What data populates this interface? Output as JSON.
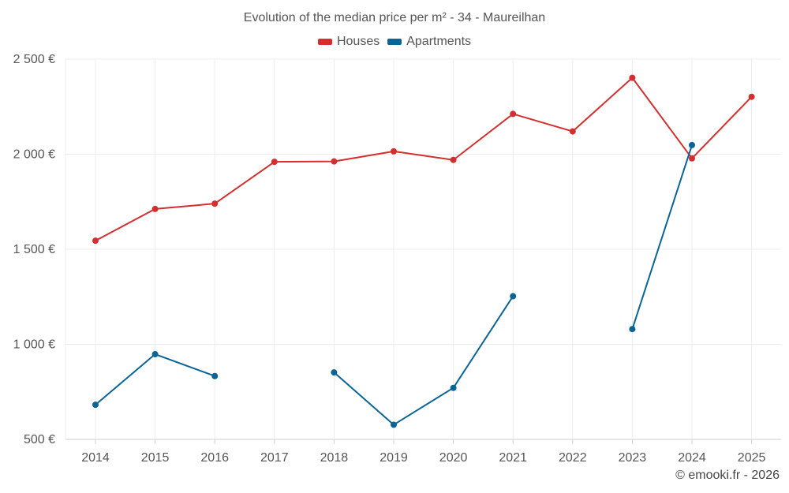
{
  "chart_data": {
    "type": "line",
    "title": "Evolution of the median price per m² - 34 - Maureilhan",
    "x": [
      "2014",
      "2015",
      "2016",
      "2017",
      "2018",
      "2019",
      "2020",
      "2021",
      "2022",
      "2023",
      "2024",
      "2025"
    ],
    "ylim": [
      500,
      2500
    ],
    "yticks": [
      500,
      1000,
      1500,
      2000,
      2500
    ],
    "ytick_labels": [
      "500 €",
      "1 000 €",
      "1 500 €",
      "2 000 €",
      "2 500 €"
    ],
    "grid": true,
    "legend_position": "top-center",
    "series": [
      {
        "name": "Houses",
        "color": "#d32f2f",
        "values": [
          1545,
          1712,
          1740,
          1960,
          1962,
          2015,
          1970,
          2212,
          2120,
          2402,
          1978,
          2302
        ]
      },
      {
        "name": "Apartments",
        "color": "#0a6496",
        "values": [
          682,
          948,
          833,
          null,
          852,
          577,
          771,
          1253,
          null,
          1080,
          2048,
          null
        ]
      }
    ]
  },
  "credit": "© emooki.fr - 2026"
}
